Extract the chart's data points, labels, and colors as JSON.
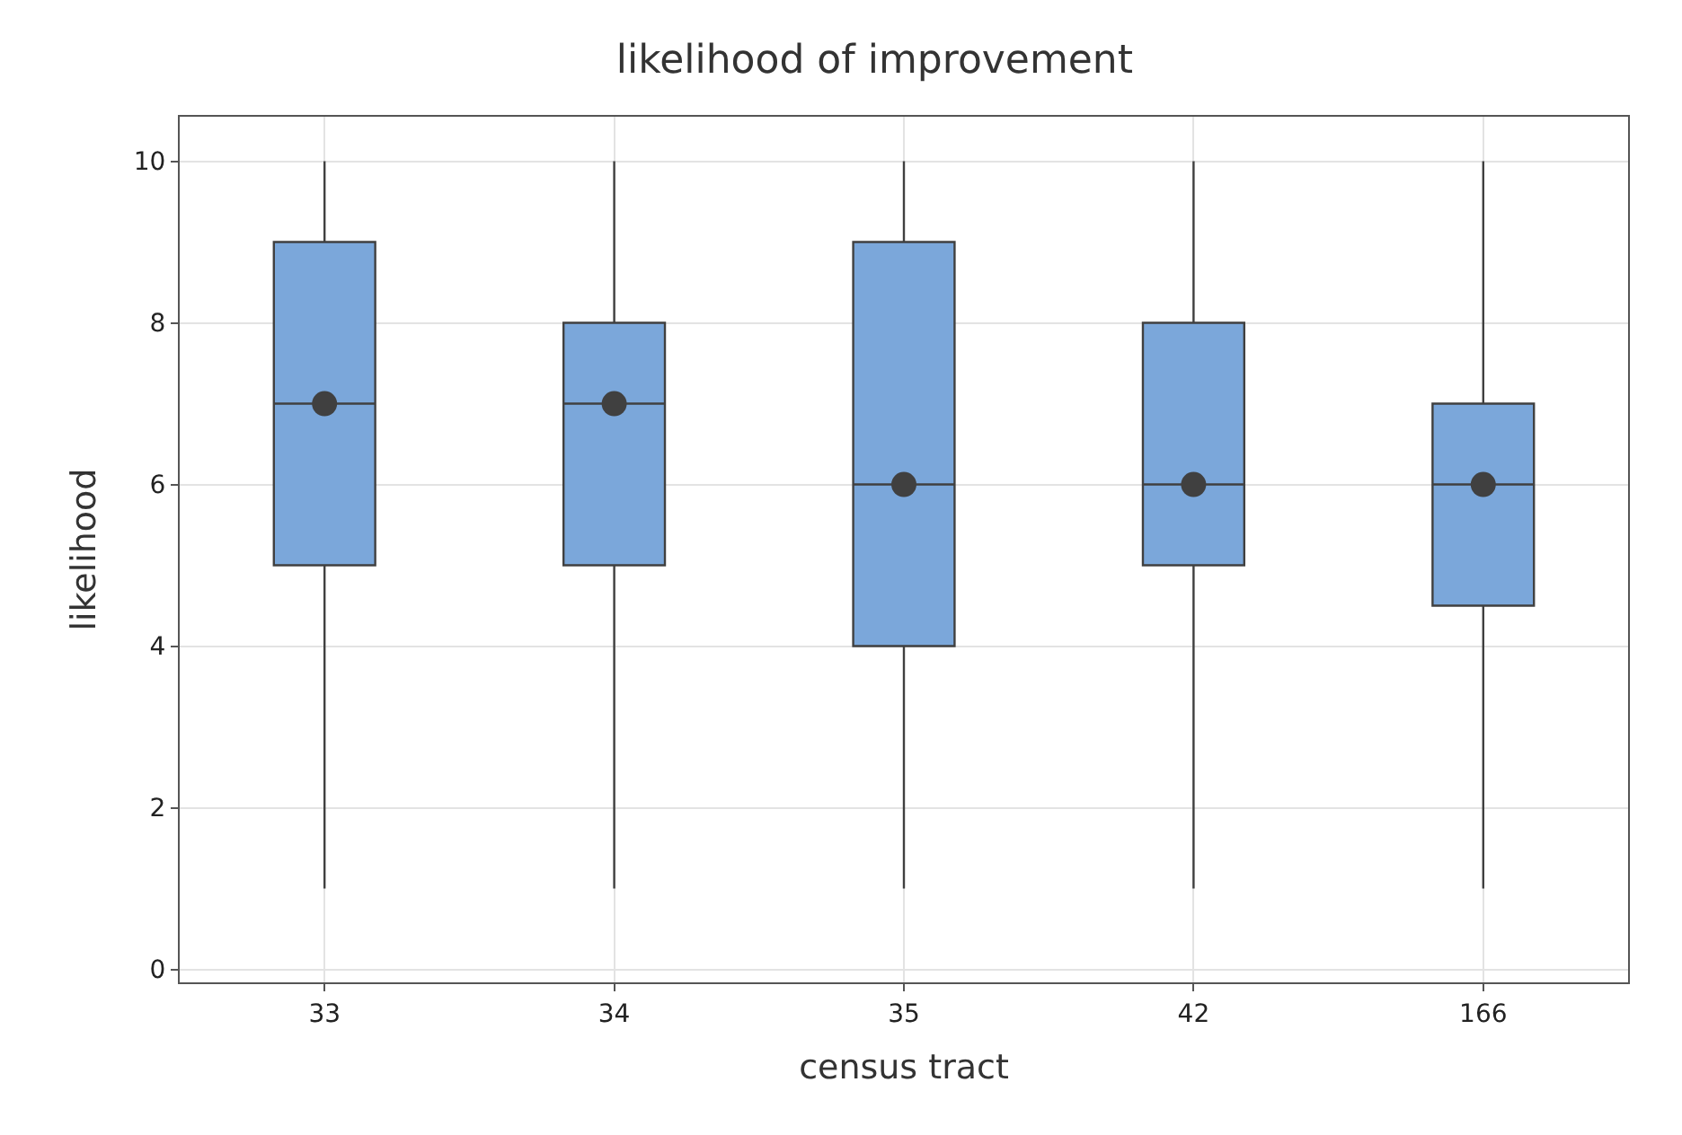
{
  "chart_data": {
    "type": "box",
    "title": "likelihood of improvement",
    "xlabel": "census tract",
    "ylabel": "likelihood",
    "categories": [
      "33",
      "34",
      "35",
      "42",
      "166"
    ],
    "series": [
      {
        "color": "#7ba7da",
        "boxes": [
          {
            "low": 1,
            "q1": 5,
            "median": 7,
            "q3": 9,
            "high": 10,
            "mean": 7
          },
          {
            "low": 1,
            "q1": 5,
            "median": 7,
            "q3": 8,
            "high": 10,
            "mean": 7
          },
          {
            "low": 1,
            "q1": 4,
            "median": 6,
            "q3": 9,
            "high": 10,
            "mean": 6
          },
          {
            "low": 1,
            "q1": 5,
            "median": 6,
            "q3": 8,
            "high": 10,
            "mean": 6
          },
          {
            "low": 1,
            "q1": 4.5,
            "median": 6,
            "q3": 7,
            "high": 10,
            "mean": 6
          }
        ]
      }
    ],
    "ylim": [
      -0.16,
      10.55
    ],
    "yticks": [
      0,
      2,
      4,
      6,
      8,
      10
    ],
    "grid": true
  }
}
